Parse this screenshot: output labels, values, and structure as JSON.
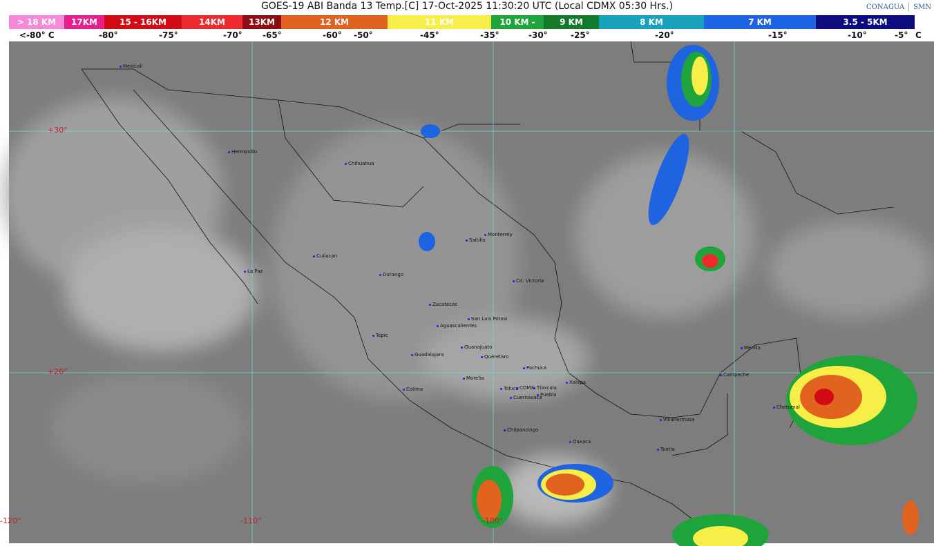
{
  "title": "GOES-19 ABI Banda 13 Temp.[C] 17-Oct-2025 11:30:20 UTC (Local CDMX  05:30 Hrs.)",
  "logos": [
    "CONAGUA",
    "SMN"
  ],
  "legend": [
    {
      "label": "> 18 KM",
      "color": "#f48ad8"
    },
    {
      "label": "17KM",
      "color": "#e8208e"
    },
    {
      "label": "15 - 16KM",
      "color": "#d10a14"
    },
    {
      "label": "14KM",
      "color": "#ee2a2e"
    },
    {
      "label": "13KM",
      "color": "#8c0d12"
    },
    {
      "label": "12 KM",
      "color": "#e2621f"
    },
    {
      "label": "11 KM",
      "color": "#f7ef48"
    },
    {
      "label": "10 KM - ",
      "color": "#1ea43a"
    },
    {
      "label": "9 KM",
      "color": "#137a2b"
    },
    {
      "label": "8 KM",
      "color": "#17a2bd"
    },
    {
      "label": "7 KM",
      "color": "#1e63e0"
    },
    {
      "label": "3.5 - 5KM",
      "color": "#0c0c80"
    }
  ],
  "temps": [
    "<-80° C",
    "-80°",
    "-75°",
    "-70°",
    "-65°",
    "-60°",
    "-50°",
    "-45°",
    "-35°",
    "-30°",
    "-25°",
    "-20°",
    "-15°",
    "-10°",
    "-5°",
    "C"
  ],
  "coords": [
    "+30°",
    "+20°",
    "-120°",
    "-110°",
    "-100°"
  ],
  "cities": [
    "Mexicali",
    "Hermosillo",
    "Chihuahua",
    "Monterrey",
    "Saltillo",
    "Culiacan",
    "La Paz",
    "Durango",
    "Cd. Victoria",
    "Zacatecas",
    "San Luis Potosi",
    "Aguascalientes",
    "Tepic",
    "Guanajuato",
    "Guadalajara",
    "Queretaro",
    "Pachuca",
    "Merida",
    "Campeche",
    "Morelia",
    "Xalapa",
    "Colima",
    "Toluca",
    "CDMX",
    "Tlaxcala",
    "Puebla",
    "Cuernavaca",
    "Chetumal",
    "Villahermosa",
    "Chilpancingo",
    "Oaxaca",
    "Tuxtla"
  ]
}
